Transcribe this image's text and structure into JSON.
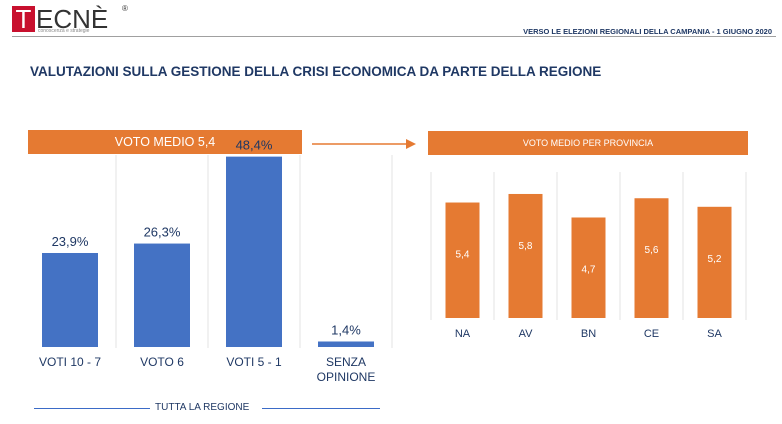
{
  "header": {
    "logo_main": "TECNÈ",
    "logo_letter": "T",
    "logo_rest": "ECNÈ",
    "logo_reg": "®",
    "logo_sub": "conoscenza e strategie",
    "right_text": "VERSO LE ELEZIONI REGIONALI DELLA CAMPANIA - 1 GIUGNO 2020"
  },
  "title": "VALUTAZIONI SULLA GESTIONE DELLA CRISI ECONOMICA DA PARTE DELLA REGIONE",
  "left_panel": {
    "banner": "VOTO MEDIO 5,4",
    "footer": "TUTTA LA REGIONE"
  },
  "right_panel": {
    "banner": "VOTO MEDIO PER PROVINCIA"
  },
  "colors": {
    "blue_bar": "#4472c4",
    "orange": "#e57a32",
    "navy_text": "#1f3864"
  },
  "chart_data": [
    {
      "type": "bar",
      "categories": [
        "VOTI 10 - 7",
        "VOTO 6",
        "VOTI 5 - 1",
        "SENZA OPINIONE"
      ],
      "values": [
        23.9,
        26.3,
        48.4,
        1.4
      ],
      "value_labels": [
        "23,9%",
        "26,3%",
        "48,4%",
        "1,4%"
      ],
      "category_lines": [
        [
          "VOTI 10 - 7"
        ],
        [
          "VOTO 6"
        ],
        [
          "VOTI 5 - 1"
        ],
        [
          "SENZA",
          "OPINIONE"
        ]
      ],
      "title": "VOTO MEDIO 5,4",
      "xlabel": "TUTTA LA REGIONE",
      "ylabel": "",
      "ylim": [
        0,
        60
      ],
      "grid": false
    },
    {
      "type": "bar",
      "categories": [
        "NA",
        "AV",
        "BN",
        "CE",
        "SA"
      ],
      "values": [
        5.4,
        5.8,
        4.7,
        5.6,
        5.2
      ],
      "value_labels": [
        "5,4",
        "5,8",
        "4,7",
        "5,6",
        "5,2"
      ],
      "title": "VOTO MEDIO PER PROVINCIA",
      "xlabel": "",
      "ylabel": "",
      "ylim": [
        0,
        6.5
      ],
      "grid": false
    }
  ]
}
